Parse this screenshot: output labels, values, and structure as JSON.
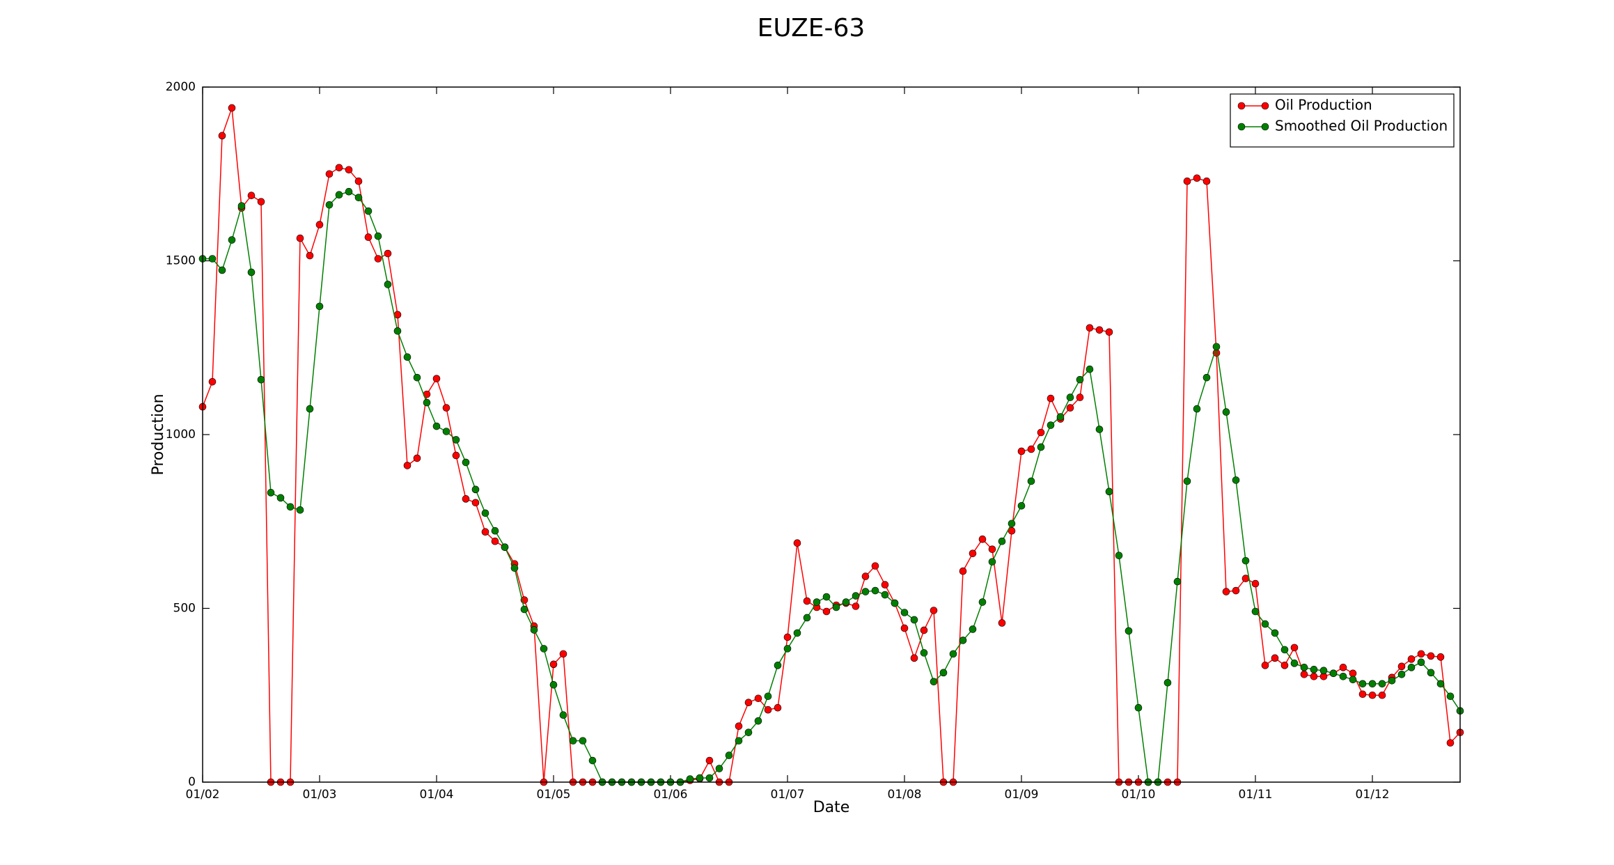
{
  "chart_data": {
    "type": "line",
    "title": "EUZE-63",
    "x_label": "Date",
    "y_label": "Production",
    "categories": [
      "01/02",
      null,
      null,
      null,
      null,
      null,
      null,
      null,
      null,
      null,
      null,
      null,
      "01/03",
      null,
      null,
      null,
      null,
      null,
      null,
      null,
      null,
      null,
      null,
      null,
      "01/04",
      null,
      null,
      null,
      null,
      null,
      null,
      null,
      null,
      null,
      null,
      null,
      "01/05",
      null,
      null,
      null,
      null,
      null,
      null,
      null,
      null,
      null,
      null,
      null,
      "01/06",
      null,
      null,
      null,
      null,
      null,
      null,
      null,
      null,
      null,
      null,
      null,
      "01/07",
      null,
      null,
      null,
      null,
      null,
      null,
      null,
      null,
      null,
      null,
      null,
      "01/08",
      null,
      null,
      null,
      null,
      null,
      null,
      null,
      null,
      null,
      null,
      null,
      "01/09",
      null,
      null,
      null,
      null,
      null,
      null,
      null,
      null,
      null,
      null,
      null,
      "01/10",
      null,
      null,
      null,
      null,
      null,
      null,
      null,
      null,
      null,
      null,
      null,
      "01/11",
      null,
      null,
      null,
      null,
      null,
      null,
      null,
      null,
      null,
      null,
      null,
      "01/12",
      null,
      null,
      null,
      null,
      null,
      null,
      null,
      null,
      null
    ],
    "series": [
      {
        "name": "Oil Production",
        "color": "#ff0000",
        "values": [
          1080,
          1152,
          1860,
          1940,
          1652,
          1688,
          1670,
          0,
          0,
          0,
          1565,
          1515,
          1604,
          1750,
          1768,
          1762,
          1729,
          1568,
          1506,
          1521,
          1345,
          911,
          932,
          1116,
          1161,
          1077,
          940,
          815,
          804,
          720,
          693,
          676,
          628,
          524,
          449,
          0,
          339,
          369,
          0,
          0,
          0,
          0,
          0,
          0,
          0,
          0,
          0,
          0,
          0,
          0,
          5,
          10,
          62,
          0,
          0,
          161,
          229,
          241,
          208,
          214,
          417,
          688,
          521,
          503,
          491,
          509,
          515,
          506,
          592,
          622,
          568,
          515,
          443,
          357,
          437,
          494,
          0,
          0,
          607,
          658,
          699,
          670,
          458,
          723,
          952,
          958,
          1006,
          1104,
          1045,
          1077,
          1107,
          1307,
          1301,
          1295,
          0,
          0,
          0,
          0,
          0,
          0,
          0,
          1729,
          1738,
          1729,
          1235,
          548,
          551,
          586,
          571,
          336,
          357,
          336,
          387,
          310,
          304,
          304,
          313,
          330,
          313,
          253,
          250,
          250,
          301,
          333,
          354,
          369,
          363,
          360,
          113,
          143
        ]
      },
      {
        "name": "Smoothed Oil Production",
        "color": "#007f00",
        "values": [
          1506,
          1506,
          1473,
          1560,
          1658,
          1467,
          1158,
          833,
          818,
          792,
          783,
          1074,
          1369,
          1661,
          1690,
          1699,
          1682,
          1643,
          1571,
          1432,
          1298,
          1223,
          1164,
          1092,
          1024,
          1009,
          985,
          920,
          842,
          774,
          723,
          676,
          616,
          497,
          438,
          384,
          280,
          193,
          119,
          119,
          62,
          0,
          0,
          0,
          0,
          0,
          0,
          0,
          0,
          0,
          9,
          12,
          12,
          39,
          77,
          119,
          143,
          176,
          247,
          336,
          384,
          429,
          473,
          518,
          533,
          503,
          518,
          536,
          548,
          551,
          539,
          515,
          488,
          467,
          372,
          289,
          315,
          369,
          408,
          440,
          518,
          634,
          693,
          744,
          795,
          866,
          964,
          1027,
          1051,
          1107,
          1158,
          1188,
          1015,
          836,
          652,
          435,
          214,
          0,
          0,
          286,
          577,
          866,
          1074,
          1164,
          1253,
          1065,
          869,
          637,
          491,
          455,
          429,
          381,
          342,
          330,
          324,
          321,
          313,
          304,
          295,
          283,
          283,
          283,
          292,
          310,
          330,
          345,
          315,
          283,
          247,
          205
        ]
      }
    ],
    "ylim": [
      0,
      2000
    ],
    "yticks": [
      0,
      500,
      1000,
      1500,
      2000
    ],
    "grid": false,
    "legend": "upper right",
    "markers": true
  }
}
